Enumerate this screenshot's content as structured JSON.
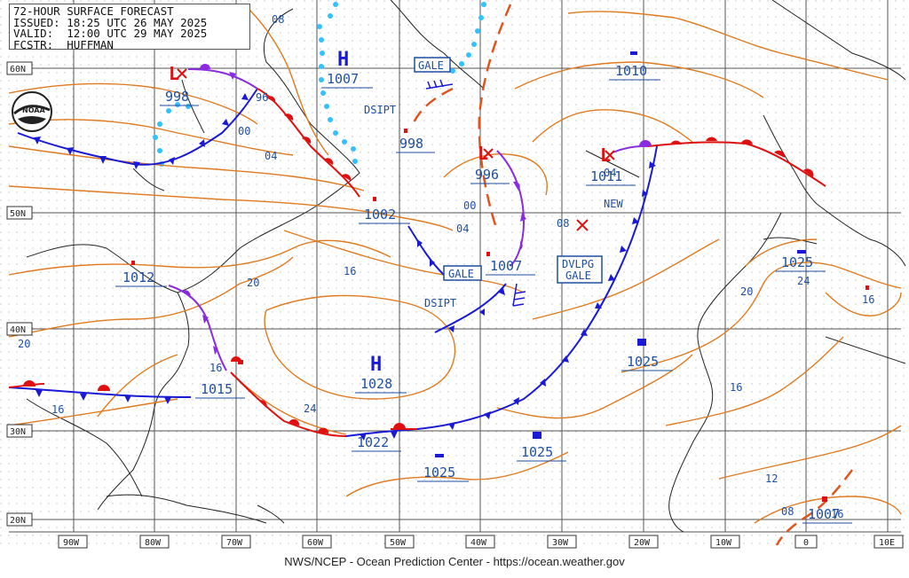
{
  "header": {
    "title": "72-HOUR SURFACE FORECAST",
    "issued": "ISSUED: 18:25 UTC 26 MAY 2025",
    "valid": "VALID:  12:00 UTC 29 MAY 2025",
    "forecaster": "FCSTR:  HUFFMAN"
  },
  "logo": {
    "text": "NOAA",
    "icon": "noaa-logo"
  },
  "footer": {
    "text": "NWS/NCEP - Ocean Prediction Center - https://ocean.weather.gov"
  },
  "lat_labels": [
    "60N",
    "50N",
    "40N",
    "30N",
    "20N"
  ],
  "lon_labels": [
    "90W",
    "80W",
    "70W",
    "60W",
    "50W",
    "40W",
    "30W",
    "20W",
    "10W",
    "0",
    "10E"
  ],
  "highs": [
    {
      "symbol": "H",
      "pressure": "1007"
    },
    {
      "symbol": "H",
      "pressure": "1028"
    }
  ],
  "lows": [
    {
      "symbol": "L",
      "pressure": "998"
    },
    {
      "symbol": "L",
      "pressure": "996"
    },
    {
      "symbol": "L",
      "pressure": "1011"
    }
  ],
  "centers": [
    {
      "pressure": "1010"
    },
    {
      "pressure": "998"
    },
    {
      "pressure": "1002"
    },
    {
      "pressure": "1007"
    },
    {
      "pressure": "1012"
    },
    {
      "pressure": "1015"
    },
    {
      "pressure": "1022"
    },
    {
      "pressure": "1025"
    },
    {
      "pressure": "1025"
    },
    {
      "pressure": "1025"
    },
    {
      "pressure": "1025"
    },
    {
      "pressure": "1007"
    }
  ],
  "isobar_labels": [
    "96",
    "00",
    "04",
    "08",
    "00",
    "04",
    "16",
    "20",
    "16",
    "20",
    "24",
    "16",
    "16",
    "20",
    "24",
    "16",
    "16",
    "12",
    "08",
    "04",
    "08"
  ],
  "annotations": {
    "dsipt_1": "DSIPT",
    "dsipt_2": "DSIPT",
    "new": "NEW",
    "gale_1": "GALE",
    "gale_2": "GALE",
    "dvlpg_gale_1": "DVLPG",
    "dvlpg_gale_2": "GALE"
  },
  "colors": {
    "isobar": "#e07a1f",
    "cold_front": "#1a1ad6",
    "warm_front": "#e01010",
    "occluded": "#8a2be2",
    "ice": "#33c1ff",
    "label": "#1f4fa0",
    "coast": "#222222",
    "grid": "#555555"
  }
}
